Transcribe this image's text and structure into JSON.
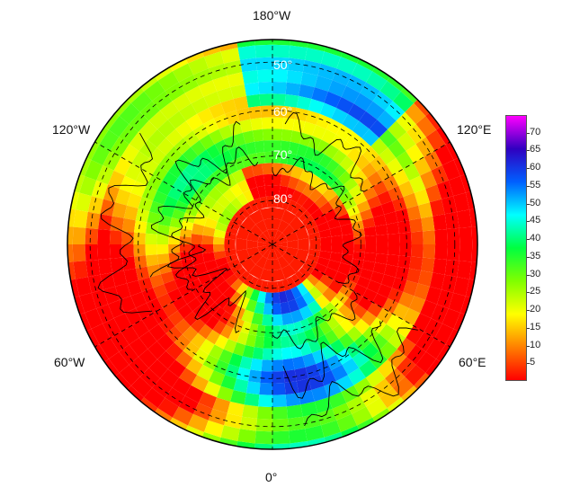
{
  "map": {
    "projection": "north-polar-stereographic",
    "longitude_labels": {
      "top": "180°W",
      "bottom": "0°",
      "left_top": "120°W",
      "right_top": "120°E",
      "left_bottom": "60°W",
      "right_bottom": "60°E"
    },
    "latitude_labels": [
      "50°",
      "60°",
      "70°",
      "80°"
    ],
    "colorbar": {
      "ticks": [
        "70",
        "65",
        "60",
        "55",
        "50",
        "45",
        "40",
        "35",
        "30",
        "25",
        "20",
        "15",
        "10",
        "5"
      ],
      "min": 0,
      "max": 75,
      "colors_low_to_high": [
        "#ff0000",
        "#ff8000",
        "#ffff00",
        "#80ff00",
        "#00ff40",
        "#00ffff",
        "#0060ff",
        "#3000c0",
        "#ff00ff"
      ]
    }
  }
}
